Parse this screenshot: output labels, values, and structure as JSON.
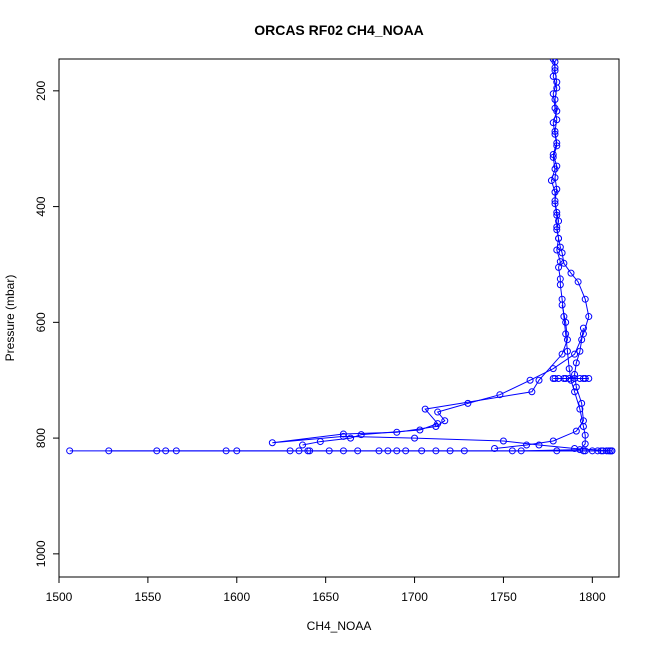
{
  "chart_data": {
    "type": "scatter",
    "title": "ORCAS RF02 CH4_NOAA",
    "xlabel": "CH4_NOAA",
    "ylabel": "Pressure (mbar)",
    "xlim": [
      1500,
      1815
    ],
    "ylim": [
      1040,
      145
    ],
    "y_reversed": true,
    "x_ticks": [
      1500,
      1550,
      1600,
      1650,
      1700,
      1750,
      1800
    ],
    "y_ticks": [
      200,
      400,
      600,
      800,
      1000
    ],
    "grid": false,
    "legend": "none",
    "series": [
      {
        "style": "line-with-open-circles",
        "color": "#0000ff",
        "points": [
          [
            1778,
            145
          ],
          [
            1779,
            160
          ],
          [
            1778,
            175
          ],
          [
            1780,
            195
          ],
          [
            1779,
            215
          ],
          [
            1780,
            235
          ],
          [
            1778,
            255
          ],
          [
            1779,
            275
          ],
          [
            1780,
            295
          ],
          [
            1778,
            315
          ],
          [
            1779,
            335
          ],
          [
            1777,
            355
          ],
          [
            1779,
            375
          ],
          [
            1779,
            395
          ],
          [
            1780,
            415
          ],
          [
            1780,
            435
          ],
          [
            1781,
            455
          ],
          [
            1780,
            475
          ],
          [
            1782,
            495
          ],
          [
            1781,
            505
          ],
          [
            1782,
            525
          ],
          [
            1782,
            535
          ],
          [
            1783,
            560
          ],
          [
            1784,
            590
          ],
          [
            1785,
            620
          ],
          [
            1786,
            650
          ],
          [
            1787,
            680
          ],
          [
            1788,
            700
          ],
          [
            1790,
            720
          ],
          [
            1793,
            750
          ],
          [
            1795,
            780
          ],
          [
            1796,
            795
          ],
          [
            1796,
            810
          ],
          [
            1793,
            820
          ],
          [
            1760,
            822
          ],
          [
            1720,
            822
          ],
          [
            1680,
            822
          ],
          [
            1640,
            822
          ],
          [
            1600,
            822
          ],
          [
            1560,
            822
          ],
          [
            1506,
            822
          ],
          [
            1810,
            822
          ],
          [
            1811,
            822
          ],
          [
            1790,
            818
          ],
          [
            1770,
            812
          ],
          [
            1750,
            805
          ],
          [
            1700,
            800
          ],
          [
            1660,
            797
          ],
          [
            1620,
            808
          ],
          [
            1660,
            793
          ],
          [
            1690,
            790
          ],
          [
            1712,
            780
          ],
          [
            1717,
            770
          ],
          [
            1713,
            755
          ],
          [
            1730,
            740
          ],
          [
            1748,
            725
          ],
          [
            1765,
            700
          ],
          [
            1778,
            680
          ],
          [
            1790,
            655
          ],
          [
            1795,
            620
          ],
          [
            1798,
            590
          ],
          [
            1796,
            560
          ],
          [
            1792,
            530
          ],
          [
            1788,
            515
          ],
          [
            1784,
            498
          ],
          [
            1783,
            480
          ],
          [
            1782,
            470
          ],
          [
            1781,
            455
          ],
          [
            1780,
            440
          ],
          [
            1781,
            425
          ],
          [
            1780,
            410
          ],
          [
            1779,
            390
          ],
          [
            1780,
            370
          ],
          [
            1779,
            350
          ],
          [
            1780,
            330
          ],
          [
            1778,
            310
          ],
          [
            1780,
            290
          ],
          [
            1779,
            270
          ],
          [
            1780,
            250
          ],
          [
            1779,
            230
          ],
          [
            1778,
            205
          ],
          [
            1780,
            185
          ],
          [
            1779,
            165
          ],
          [
            1779,
            150
          ]
        ]
      },
      {
        "style": "line-with-open-circles",
        "color": "#0000ff",
        "points": [
          [
            1778,
            697
          ],
          [
            1781,
            697
          ],
          [
            1784,
            697
          ],
          [
            1787,
            697
          ],
          [
            1790,
            697
          ],
          [
            1793,
            697
          ],
          [
            1796,
            697
          ],
          [
            1798,
            697
          ],
          [
            1795,
            697
          ],
          [
            1785,
            697
          ],
          [
            1779,
            697
          ]
        ]
      },
      {
        "style": "line-with-open-circles",
        "color": "#0000ff",
        "points": [
          [
            1795,
            822
          ],
          [
            1800,
            822
          ],
          [
            1803,
            822
          ],
          [
            1806,
            822
          ],
          [
            1808,
            822
          ],
          [
            1810,
            822
          ],
          [
            1811,
            822
          ],
          [
            1809,
            822
          ],
          [
            1805,
            822
          ],
          [
            1796,
            822
          ],
          [
            1780,
            822
          ],
          [
            1755,
            822
          ],
          [
            1728,
            822
          ],
          [
            1712,
            822
          ],
          [
            1704,
            822
          ],
          [
            1695,
            822
          ],
          [
            1690,
            822
          ],
          [
            1685,
            822
          ],
          [
            1668,
            822
          ],
          [
            1660,
            822
          ],
          [
            1652,
            822
          ],
          [
            1641,
            822
          ],
          [
            1635,
            822
          ],
          [
            1630,
            822
          ],
          [
            1594,
            822
          ],
          [
            1566,
            822
          ],
          [
            1555,
            822
          ],
          [
            1528,
            822
          ]
        ]
      },
      {
        "style": "line-with-open-circles",
        "color": "#0000ff",
        "points": [
          [
            1745,
            818
          ],
          [
            1763,
            812
          ],
          [
            1778,
            805
          ],
          [
            1791,
            788
          ],
          [
            1795,
            770
          ],
          [
            1794,
            740
          ],
          [
            1791,
            712
          ],
          [
            1790,
            690
          ],
          [
            1791,
            670
          ],
          [
            1793,
            650
          ],
          [
            1794,
            630
          ],
          [
            1795,
            610
          ]
        ]
      },
      {
        "style": "line-with-open-circles",
        "color": "#0000ff",
        "points": [
          [
            1637,
            812
          ],
          [
            1647,
            806
          ],
          [
            1664,
            800
          ],
          [
            1670,
            794
          ],
          [
            1703,
            786
          ],
          [
            1713,
            775
          ],
          [
            1706,
            750
          ],
          [
            1766,
            720
          ],
          [
            1770,
            700
          ],
          [
            1783,
            655
          ],
          [
            1786,
            630
          ],
          [
            1785,
            600
          ],
          [
            1783,
            570
          ]
        ]
      }
    ]
  }
}
